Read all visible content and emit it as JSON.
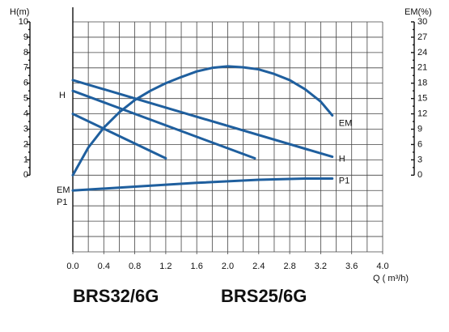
{
  "chart_data": {
    "type": "line",
    "ylabel": "H(m)",
    "y2label": "EM(%)",
    "xlabel": "Q ( m³/h)",
    "xlim": [
      0,
      4
    ],
    "xticks": [
      {
        "value": 0,
        "label": "0.0"
      },
      0.4,
      0.8,
      1.2,
      1.6,
      {
        "value": 2,
        "label": "2.0"
      },
      2.4,
      2.8,
      3.2,
      3.6,
      {
        "value": 4,
        "label": "4.0"
      }
    ],
    "ylim": [
      -5,
      10
    ],
    "yticks": [
      0,
      1,
      2,
      3,
      4,
      5,
      6,
      7,
      8,
      9,
      10
    ],
    "y2lim": [
      -15,
      30
    ],
    "y2ticks": [
      0,
      3,
      6,
      9,
      12,
      15,
      18,
      21,
      24,
      27,
      30
    ],
    "grid": true,
    "start_labels": [
      "H",
      "EM",
      "P1"
    ],
    "models": [
      "BRS32/6G",
      "BRS25/6G"
    ],
    "series": [
      {
        "name": "H",
        "color": "#1f5f9e",
        "x": [
          0,
          3.35
        ],
        "values": [
          6.2,
          1.2
        ]
      },
      {
        "color": "#1f5f9e",
        "x": [
          0,
          2.35
        ],
        "values": [
          5.5,
          1.1
        ]
      },
      {
        "color": "#1f5f9e",
        "x": [
          0,
          1.2
        ],
        "values": [
          4.0,
          1.1
        ]
      },
      {
        "name": "EM",
        "color": "#1f5f9e",
        "axis": "y2",
        "x": [
          0,
          0.2,
          0.4,
          0.6,
          0.8,
          1.0,
          1.2,
          1.4,
          1.6,
          1.8,
          2.0,
          2.2,
          2.4,
          2.6,
          2.8,
          3.0,
          3.2,
          3.35
        ],
        "values": [
          0,
          5.4,
          9.3,
          12.3,
          14.7,
          16.5,
          18.0,
          19.2,
          20.3,
          21.0,
          21.3,
          21.1,
          20.7,
          19.8,
          18.6,
          16.8,
          14.4,
          11.7
        ]
      },
      {
        "name": "P1",
        "color": "#1f5f9e",
        "x": [
          0,
          0.8,
          1.6,
          2.4,
          3.0,
          3.35
        ],
        "values": [
          -1.0,
          -0.75,
          -0.5,
          -0.3,
          -0.22,
          -0.22
        ]
      }
    ]
  }
}
